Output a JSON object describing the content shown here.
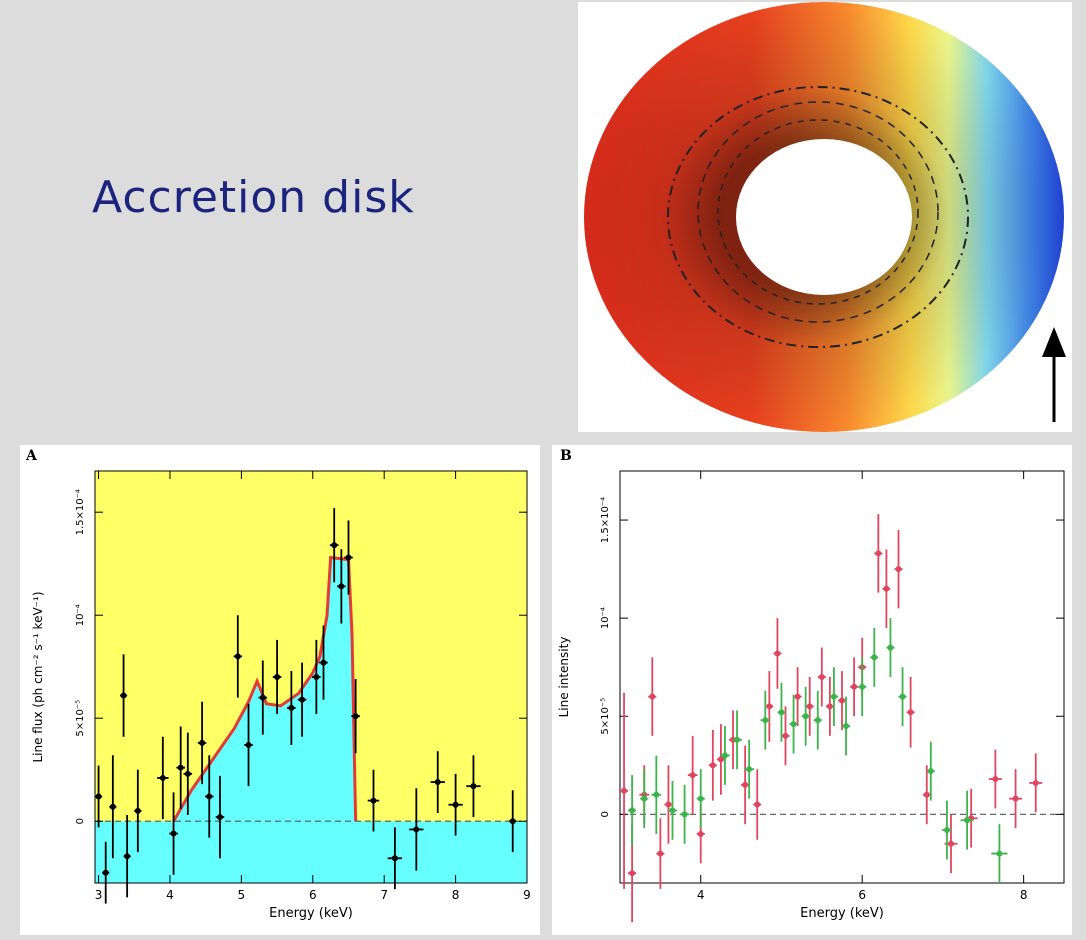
{
  "slide": {
    "title": "Accretion disk"
  },
  "disk": {
    "inner_colors": [
      "#d7301f",
      "#fb6a4a",
      "#fdae61",
      "#ffff8c",
      "#abdda4",
      "#3288bd",
      "#2b4fd8"
    ]
  },
  "chart_data": [
    {
      "type": "scatter",
      "panel_label": "A",
      "xlabel": "Energy (keV)",
      "ylabel": "Line flux (ph cm⁻² s⁻¹ keV⁻¹)",
      "xlim": [
        2.95,
        9.0
      ],
      "ylim": [
        -3e-05,
        0.00017
      ],
      "x_ticks": [
        3,
        4,
        5,
        6,
        7,
        8,
        9
      ],
      "y_ticks": [
        {
          "value": 0,
          "label": "0"
        },
        {
          "value": 5e-05,
          "label": "5×10⁻⁵"
        },
        {
          "value": 0.0001,
          "label": "10⁻⁴"
        },
        {
          "value": 0.00015,
          "label": "1.5×10⁻⁴"
        }
      ],
      "background_color": "#ffff66",
      "fill_color": "#66ffff",
      "model_color": "#e53935",
      "model": {
        "x": [
          4.05,
          4.3,
          4.6,
          4.9,
          5.1,
          5.22,
          5.35,
          5.55,
          5.8,
          6.0,
          6.1,
          6.2,
          6.25,
          6.5,
          6.55,
          6.6
        ],
        "y": [
          0,
          1.5e-05,
          3e-05,
          4.5e-05,
          5.8e-05,
          6.8e-05,
          5.7e-05,
          5.6e-05,
          6.2e-05,
          7.2e-05,
          8e-05,
          0.0001,
          0.000128,
          0.000127,
          9e-05,
          0
        ]
      },
      "series": [
        {
          "name": "",
          "color": "#000000",
          "points": [
            {
              "x": 3.0,
              "y": 1.2e-05,
              "xerr": 0.05,
              "yerr": 1.5e-05
            },
            {
              "x": 3.1,
              "y": -2.5e-05,
              "xerr": 0.05,
              "yerr": 1.5e-05
            },
            {
              "x": 3.2,
              "y": 7e-06,
              "xerr": 0.05,
              "yerr": 2.5e-05
            },
            {
              "x": 3.35,
              "y": 6.1e-05,
              "xerr": 0.05,
              "yerr": 2e-05
            },
            {
              "x": 3.4,
              "y": -1.7e-05,
              "xerr": 0.05,
              "yerr": 2e-05
            },
            {
              "x": 3.55,
              "y": 5e-06,
              "xerr": 0.05,
              "yerr": 2e-05
            },
            {
              "x": 3.9,
              "y": 2.1e-05,
              "xerr": 0.08,
              "yerr": 2e-05
            },
            {
              "x": 4.05,
              "y": -6e-06,
              "xerr": 0.06,
              "yerr": 2e-05
            },
            {
              "x": 4.15,
              "y": 2.6e-05,
              "xerr": 0.06,
              "yerr": 2e-05
            },
            {
              "x": 4.25,
              "y": 2.3e-05,
              "xerr": 0.06,
              "yerr": 2e-05
            },
            {
              "x": 4.45,
              "y": 3.8e-05,
              "xerr": 0.06,
              "yerr": 2e-05
            },
            {
              "x": 4.55,
              "y": 1.2e-05,
              "xerr": 0.06,
              "yerr": 2e-05
            },
            {
              "x": 4.7,
              "y": 2e-06,
              "xerr": 0.06,
              "yerr": 2e-05
            },
            {
              "x": 4.95,
              "y": 8e-05,
              "xerr": 0.06,
              "yerr": 2e-05
            },
            {
              "x": 5.1,
              "y": 3.7e-05,
              "xerr": 0.06,
              "yerr": 2e-05
            },
            {
              "x": 5.3,
              "y": 6e-05,
              "xerr": 0.06,
              "yerr": 1.8e-05
            },
            {
              "x": 5.5,
              "y": 7e-05,
              "xerr": 0.06,
              "yerr": 1.8e-05
            },
            {
              "x": 5.7,
              "y": 5.5e-05,
              "xerr": 0.06,
              "yerr": 1.8e-05
            },
            {
              "x": 5.85,
              "y": 5.9e-05,
              "xerr": 0.06,
              "yerr": 1.8e-05
            },
            {
              "x": 6.05,
              "y": 7e-05,
              "xerr": 0.06,
              "yerr": 1.8e-05
            },
            {
              "x": 6.15,
              "y": 7.7e-05,
              "xerr": 0.06,
              "yerr": 1.8e-05
            },
            {
              "x": 6.3,
              "y": 0.000134,
              "xerr": 0.06,
              "yerr": 1.8e-05
            },
            {
              "x": 6.4,
              "y": 0.000114,
              "xerr": 0.06,
              "yerr": 1.8e-05
            },
            {
              "x": 6.5,
              "y": 0.000128,
              "xerr": 0.06,
              "yerr": 1.8e-05
            },
            {
              "x": 6.6,
              "y": 5.1e-05,
              "xerr": 0.06,
              "yerr": 1.8e-05
            },
            {
              "x": 6.85,
              "y": 1e-05,
              "xerr": 0.08,
              "yerr": 1.5e-05
            },
            {
              "x": 7.15,
              "y": -1.8e-05,
              "xerr": 0.1,
              "yerr": 1.5e-05
            },
            {
              "x": 7.45,
              "y": -4e-06,
              "xerr": 0.1,
              "yerr": 2e-05
            },
            {
              "x": 7.75,
              "y": 1.9e-05,
              "xerr": 0.1,
              "yerr": 1.5e-05
            },
            {
              "x": 8.0,
              "y": 8e-06,
              "xerr": 0.1,
              "yerr": 1.5e-05
            },
            {
              "x": 8.25,
              "y": 1.7e-05,
              "xerr": 0.1,
              "yerr": 1.5e-05
            },
            {
              "x": 8.8,
              "y": 0.0,
              "xerr": 0.05,
              "yerr": 1.5e-05
            }
          ]
        }
      ]
    },
    {
      "type": "scatter",
      "panel_label": "B",
      "xlabel": "Energy (keV)",
      "ylabel": "Line intensity",
      "xlim": [
        3.0,
        8.5
      ],
      "ylim": [
        -3.5e-05,
        0.000175
      ],
      "x_ticks": [
        4,
        6,
        8
      ],
      "y_ticks": [
        {
          "value": 0,
          "label": "0"
        },
        {
          "value": 5e-05,
          "label": "5×10⁻⁵"
        },
        {
          "value": 0.0001,
          "label": "10⁻⁴"
        },
        {
          "value": 0.00015,
          "label": "1.5×10⁻⁴"
        }
      ],
      "series": [
        {
          "name": "",
          "color": "#e0455f",
          "points": [
            {
              "x": 3.05,
              "y": 1.2e-05,
              "xerr": 0.05,
              "yerr": 5e-05
            },
            {
              "x": 3.15,
              "y": -3e-05,
              "xerr": 0.05,
              "yerr": 2.5e-05
            },
            {
              "x": 3.3,
              "y": 1e-05,
              "xerr": 0.06,
              "yerr": 1.5e-05
            },
            {
              "x": 3.4,
              "y": 6e-05,
              "xerr": 0.05,
              "yerr": 2e-05
            },
            {
              "x": 3.5,
              "y": -2e-05,
              "xerr": 0.05,
              "yerr": 1.8e-05
            },
            {
              "x": 3.6,
              "y": 5e-06,
              "xerr": 0.05,
              "yerr": 2e-05
            },
            {
              "x": 3.9,
              "y": 2e-05,
              "xerr": 0.06,
              "yerr": 2e-05
            },
            {
              "x": 4.0,
              "y": -1e-05,
              "xerr": 0.05,
              "yerr": 1.5e-05
            },
            {
              "x": 4.15,
              "y": 2.5e-05,
              "xerr": 0.05,
              "yerr": 1.8e-05
            },
            {
              "x": 4.25,
              "y": 2.8e-05,
              "xerr": 0.05,
              "yerr": 1.8e-05
            },
            {
              "x": 4.4,
              "y": 3.8e-05,
              "xerr": 0.05,
              "yerr": 1.5e-05
            },
            {
              "x": 4.55,
              "y": 1.5e-05,
              "xerr": 0.05,
              "yerr": 2e-05
            },
            {
              "x": 4.7,
              "y": 5e-06,
              "xerr": 0.05,
              "yerr": 1.8e-05
            },
            {
              "x": 4.85,
              "y": 5.5e-05,
              "xerr": 0.05,
              "yerr": 1.8e-05
            },
            {
              "x": 4.95,
              "y": 8.2e-05,
              "xerr": 0.05,
              "yerr": 1.8e-05
            },
            {
              "x": 5.05,
              "y": 4e-05,
              "xerr": 0.05,
              "yerr": 1.5e-05
            },
            {
              "x": 5.2,
              "y": 6e-05,
              "xerr": 0.05,
              "yerr": 1.5e-05
            },
            {
              "x": 5.35,
              "y": 5.5e-05,
              "xerr": 0.05,
              "yerr": 1.5e-05
            },
            {
              "x": 5.5,
              "y": 7e-05,
              "xerr": 0.05,
              "yerr": 1.5e-05
            },
            {
              "x": 5.6,
              "y": 5.5e-05,
              "xerr": 0.05,
              "yerr": 1.5e-05
            },
            {
              "x": 5.75,
              "y": 5.8e-05,
              "xerr": 0.05,
              "yerr": 1.5e-05
            },
            {
              "x": 5.9,
              "y": 6.5e-05,
              "xerr": 0.05,
              "yerr": 1.5e-05
            },
            {
              "x": 6.0,
              "y": 7.5e-05,
              "xerr": 0.05,
              "yerr": 1.5e-05
            },
            {
              "x": 6.2,
              "y": 0.000133,
              "xerr": 0.05,
              "yerr": 2e-05
            },
            {
              "x": 6.3,
              "y": 0.000115,
              "xerr": 0.05,
              "yerr": 2e-05
            },
            {
              "x": 6.45,
              "y": 0.000125,
              "xerr": 0.05,
              "yerr": 2e-05
            },
            {
              "x": 6.6,
              "y": 5.2e-05,
              "xerr": 0.05,
              "yerr": 1.8e-05
            },
            {
              "x": 6.8,
              "y": 1e-05,
              "xerr": 0.05,
              "yerr": 1.5e-05
            },
            {
              "x": 7.1,
              "y": -1.5e-05,
              "xerr": 0.08,
              "yerr": 1.5e-05
            },
            {
              "x": 7.35,
              "y": -2e-06,
              "xerr": 0.08,
              "yerr": 1.5e-05
            },
            {
              "x": 7.65,
              "y": 1.8e-05,
              "xerr": 0.08,
              "yerr": 1.5e-05
            },
            {
              "x": 7.9,
              "y": 8e-06,
              "xerr": 0.08,
              "yerr": 1.5e-05
            },
            {
              "x": 8.15,
              "y": 1.6e-05,
              "xerr": 0.08,
              "yerr": 1.5e-05
            }
          ]
        },
        {
          "name": "",
          "color": "#3cb44b",
          "points": [
            {
              "x": 3.15,
              "y": 2e-06,
              "xerr": 0.05,
              "yerr": 1.8e-05
            },
            {
              "x": 3.3,
              "y": 8e-06,
              "xerr": 0.05,
              "yerr": 1.5e-05
            },
            {
              "x": 3.45,
              "y": 1e-05,
              "xerr": 0.06,
              "yerr": 2e-05
            },
            {
              "x": 3.65,
              "y": 2e-06,
              "xerr": 0.06,
              "yerr": 1.5e-05
            },
            {
              "x": 3.8,
              "y": 0.0,
              "xerr": 0.06,
              "yerr": 1.5e-05
            },
            {
              "x": 4.0,
              "y": 8e-06,
              "xerr": 0.05,
              "yerr": 1.5e-05
            },
            {
              "x": 4.3,
              "y": 3e-05,
              "xerr": 0.06,
              "yerr": 1.5e-05
            },
            {
              "x": 4.45,
              "y": 3.8e-05,
              "xerr": 0.06,
              "yerr": 1.5e-05
            },
            {
              "x": 4.6,
              "y": 2.3e-05,
              "xerr": 0.06,
              "yerr": 1.5e-05
            },
            {
              "x": 4.8,
              "y": 4.8e-05,
              "xerr": 0.06,
              "yerr": 1.5e-05
            },
            {
              "x": 5.0,
              "y": 5.2e-05,
              "xerr": 0.05,
              "yerr": 1.5e-05
            },
            {
              "x": 5.15,
              "y": 4.6e-05,
              "xerr": 0.05,
              "yerr": 1.5e-05
            },
            {
              "x": 5.3,
              "y": 5e-05,
              "xerr": 0.05,
              "yerr": 1.5e-05
            },
            {
              "x": 5.45,
              "y": 4.8e-05,
              "xerr": 0.05,
              "yerr": 1.5e-05
            },
            {
              "x": 5.65,
              "y": 6e-05,
              "xerr": 0.05,
              "yerr": 1.5e-05
            },
            {
              "x": 5.8,
              "y": 4.5e-05,
              "xerr": 0.05,
              "yerr": 1.5e-05
            },
            {
              "x": 6.0,
              "y": 6.5e-05,
              "xerr": 0.05,
              "yerr": 1.5e-05
            },
            {
              "x": 6.15,
              "y": 8e-05,
              "xerr": 0.05,
              "yerr": 1.5e-05
            },
            {
              "x": 6.35,
              "y": 8.5e-05,
              "xerr": 0.05,
              "yerr": 1.5e-05
            },
            {
              "x": 6.5,
              "y": 6e-05,
              "xerr": 0.05,
              "yerr": 1.5e-05
            },
            {
              "x": 6.85,
              "y": 2.2e-05,
              "xerr": 0.05,
              "yerr": 1.5e-05
            },
            {
              "x": 7.05,
              "y": -8e-06,
              "xerr": 0.06,
              "yerr": 1.5e-05
            },
            {
              "x": 7.3,
              "y": -3e-06,
              "xerr": 0.08,
              "yerr": 1.5e-05
            },
            {
              "x": 7.7,
              "y": -2e-05,
              "xerr": 0.1,
              "yerr": 1.5e-05
            }
          ]
        }
      ]
    }
  ]
}
